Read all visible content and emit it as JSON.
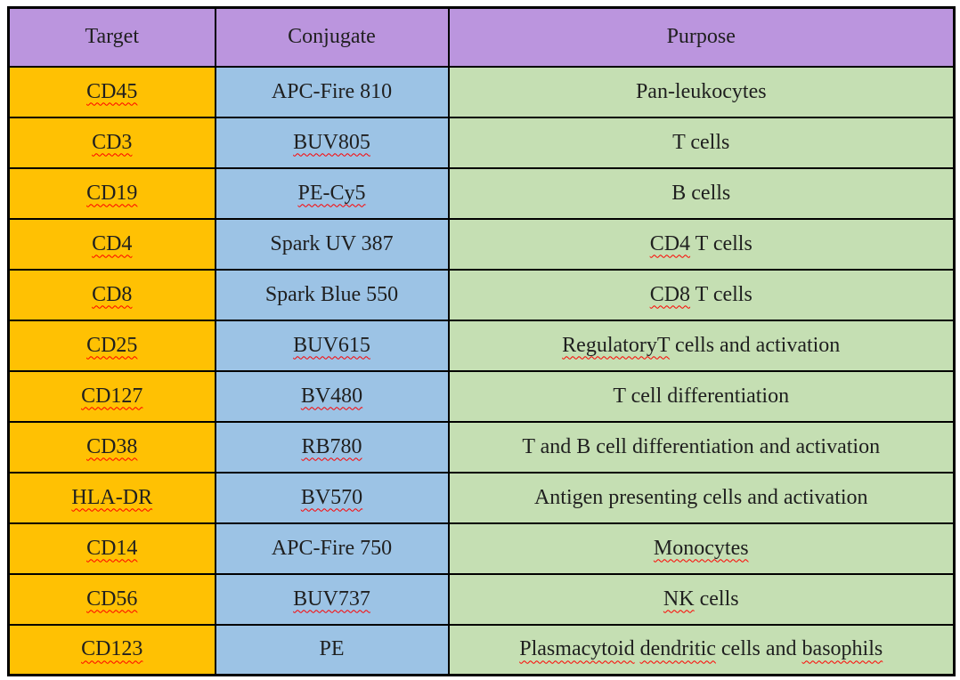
{
  "colors": {
    "page_bg": "#ffffff",
    "border": "#000000",
    "header_bg": "#bb95de",
    "target_bg": "#ffc103",
    "conjugate_bg": "#9cc3e5",
    "purpose_bg": "#c5dfb3",
    "text": "#1f1f1f",
    "squiggle": "#ff0000"
  },
  "table": {
    "headers": [
      "Target",
      "Conjugate",
      "Purpose"
    ],
    "rows": [
      {
        "target": [
          {
            "text": "CD45",
            "misspelled": true
          }
        ],
        "conjugate": [
          {
            "text": "APC-Fire 810",
            "misspelled": false
          }
        ],
        "purpose": [
          {
            "text": "Pan-leukocytes",
            "misspelled": false
          }
        ]
      },
      {
        "target": [
          {
            "text": "CD3",
            "misspelled": true
          }
        ],
        "conjugate": [
          {
            "text": "BUV805",
            "misspelled": true
          }
        ],
        "purpose": [
          {
            "text": "T cells",
            "misspelled": false
          }
        ]
      },
      {
        "target": [
          {
            "text": "CD19",
            "misspelled": true
          }
        ],
        "conjugate": [
          {
            "text": "PE-Cy5",
            "misspelled": true
          }
        ],
        "purpose": [
          {
            "text": "B cells",
            "misspelled": false
          }
        ]
      },
      {
        "target": [
          {
            "text": "CD4",
            "misspelled": true
          }
        ],
        "conjugate": [
          {
            "text": "Spark UV 387",
            "misspelled": false
          }
        ],
        "purpose": [
          {
            "text": "CD4",
            "misspelled": true
          },
          {
            "text": " T cells",
            "misspelled": false
          }
        ]
      },
      {
        "target": [
          {
            "text": "CD8",
            "misspelled": true
          }
        ],
        "conjugate": [
          {
            "text": "Spark Blue 550",
            "misspelled": false
          }
        ],
        "purpose": [
          {
            "text": "CD8",
            "misspelled": true
          },
          {
            "text": " T cells",
            "misspelled": false
          }
        ]
      },
      {
        "target": [
          {
            "text": "CD25",
            "misspelled": true
          }
        ],
        "conjugate": [
          {
            "text": "BUV615",
            "misspelled": true
          }
        ],
        "purpose": [
          {
            "text": "RegulatoryT",
            "misspelled": true
          },
          {
            "text": " cells and activation",
            "misspelled": false
          }
        ]
      },
      {
        "target": [
          {
            "text": "CD127",
            "misspelled": true
          }
        ],
        "conjugate": [
          {
            "text": "BV480",
            "misspelled": true
          }
        ],
        "purpose": [
          {
            "text": "T cell differentiation",
            "misspelled": false
          }
        ]
      },
      {
        "target": [
          {
            "text": "CD38",
            "misspelled": true
          }
        ],
        "conjugate": [
          {
            "text": "RB780",
            "misspelled": true
          }
        ],
        "purpose": [
          {
            "text": "T and B cell differentiation and activation",
            "misspelled": false
          }
        ]
      },
      {
        "target": [
          {
            "text": "HLA-DR",
            "misspelled": true
          }
        ],
        "conjugate": [
          {
            "text": "BV570",
            "misspelled": true
          }
        ],
        "purpose": [
          {
            "text": "Antigen presenting cells and activation",
            "misspelled": false
          }
        ]
      },
      {
        "target": [
          {
            "text": "CD14",
            "misspelled": true
          }
        ],
        "conjugate": [
          {
            "text": "APC-Fire 750",
            "misspelled": false
          }
        ],
        "purpose": [
          {
            "text": "Monocytes",
            "misspelled": true
          }
        ]
      },
      {
        "target": [
          {
            "text": "CD56",
            "misspelled": true
          }
        ],
        "conjugate": [
          {
            "text": "BUV737",
            "misspelled": true
          }
        ],
        "purpose": [
          {
            "text": "NK",
            "misspelled": true
          },
          {
            "text": " cells",
            "misspelled": false
          }
        ]
      },
      {
        "target": [
          {
            "text": "CD123",
            "misspelled": true
          }
        ],
        "conjugate": [
          {
            "text": "PE",
            "misspelled": false
          }
        ],
        "purpose": [
          {
            "text": "Plasmacytoid",
            "misspelled": true
          },
          {
            "text": " ",
            "misspelled": false
          },
          {
            "text": "dendritic",
            "misspelled": true
          },
          {
            "text": " cells and ",
            "misspelled": false
          },
          {
            "text": "basophils",
            "misspelled": true
          }
        ]
      }
    ]
  }
}
